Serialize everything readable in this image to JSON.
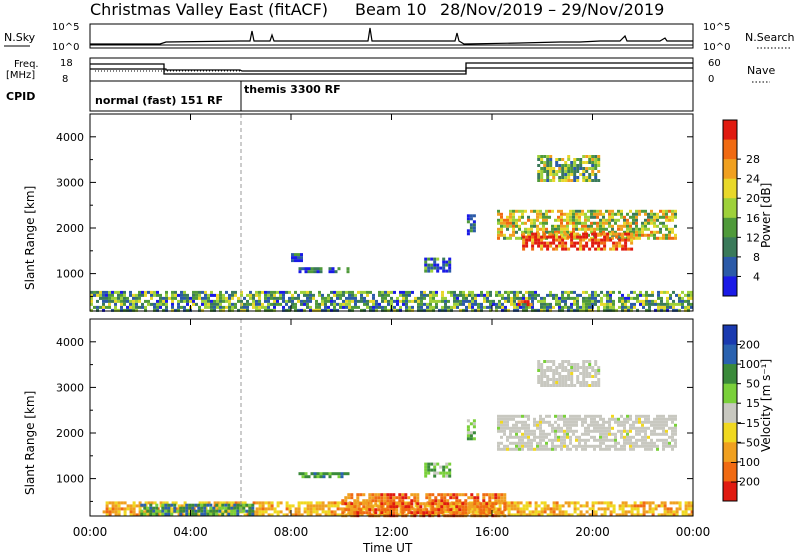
{
  "header": {
    "station": "Christmas Valley East (fitACF)",
    "beam": "Beam 10",
    "dates": "28/Nov/2019 – 29/Nov/2019"
  },
  "top_panels": {
    "nsky_label": "N.Sky",
    "nsky_ticks": [
      "10^5",
      "10^0"
    ],
    "nsearch_label": "N.Search",
    "nsearch_ticks": [
      "10^5",
      "10^0"
    ],
    "freq_label_line1": "Freq.",
    "freq_label_line2": "[MHz]",
    "freq_ticks": [
      "18",
      "8"
    ],
    "nave_label": "Nave",
    "nave_ticks": [
      "60",
      "0"
    ],
    "cpid_label": "CPID",
    "cpid_segments": [
      {
        "label": "normal (fast) 151 RF",
        "start_hour": 0
      },
      {
        "label": "themis 3300 RF",
        "start_hour": 6
      }
    ]
  },
  "chart_data": [
    {
      "type": "heatmap",
      "name": "power",
      "ylabel": "Slant Range [km]",
      "yticks": [
        1000,
        2000,
        3000,
        4000
      ],
      "ylim": [
        180,
        4500
      ],
      "xlim_hours": [
        0,
        24
      ],
      "colorbar_label": "Power [dB]",
      "colorbar_ticks": [
        "4",
        "8",
        "12",
        "16",
        "20",
        "24",
        "28"
      ],
      "colorbar_colors": [
        "#1a1ae6",
        "#2b5aa8",
        "#3a7a5a",
        "#4f9a3a",
        "#9ed13a",
        "#e8d82a",
        "#f0a020",
        "#f06a12",
        "#e01a10"
      ],
      "echo_regions": [
        {
          "t0": 0.0,
          "t1": 24.0,
          "r0": 180,
          "r1": 620,
          "level": 0.35
        },
        {
          "t0": 16.2,
          "t1": 23.3,
          "r0": 1750,
          "r1": 2400,
          "level": 0.55
        },
        {
          "t0": 17.2,
          "t1": 21.5,
          "r0": 1550,
          "r1": 1900,
          "level": 0.9
        },
        {
          "t0": 17.8,
          "t1": 20.2,
          "r0": 3050,
          "r1": 3600,
          "level": 0.45
        },
        {
          "t0": 8.3,
          "t1": 10.3,
          "r0": 1020,
          "r1": 1140,
          "level": 0.2
        },
        {
          "t0": 13.3,
          "t1": 14.3,
          "r0": 1050,
          "r1": 1350,
          "level": 0.2
        },
        {
          "t0": 8.0,
          "t1": 8.4,
          "r0": 1300,
          "r1": 1450,
          "level": 0.15
        },
        {
          "t0": 15.0,
          "t1": 15.3,
          "r0": 1900,
          "r1": 2300,
          "level": 0.2
        },
        {
          "t0": 16.9,
          "t1": 17.6,
          "r0": 300,
          "r1": 420,
          "level": 1.0
        }
      ]
    },
    {
      "type": "heatmap",
      "name": "velocity",
      "ylabel": "Slant Range [km]",
      "yticks": [
        1000,
        2000,
        3000,
        4000
      ],
      "ylim": [
        180,
        4500
      ],
      "xlim_hours": [
        0,
        24
      ],
      "xticks": [
        "00:00",
        "04:00",
        "08:00",
        "12:00",
        "16:00",
        "20:00",
        "00:00"
      ],
      "xlabel": "Time UT",
      "colorbar_label": "Velocity [m s⁻¹]",
      "colorbar_ticks": [
        "200",
        "100",
        "50",
        "15",
        "−15",
        "−50",
        "−100",
        "−200"
      ],
      "colorbar_colors": [
        "#1a3ab0",
        "#2a62b0",
        "#3a8a3a",
        "#7ad03a",
        "#c8c8c0",
        "#f0d820",
        "#f0a020",
        "#f06a12",
        "#e01a10"
      ],
      "echo_regions": [
        {
          "t0": 0.5,
          "t1": 24.0,
          "r0": 180,
          "r1": 500,
          "level": -0.4
        },
        {
          "t0": 2.0,
          "t1": 6.5,
          "r0": 200,
          "r1": 450,
          "level": 0.5
        },
        {
          "t0": 10.0,
          "t1": 16.5,
          "r0": 200,
          "r1": 680,
          "level": -0.7
        },
        {
          "t0": 16.2,
          "t1": 23.3,
          "r0": 1650,
          "r1": 2400,
          "level": 0.0
        },
        {
          "t0": 17.8,
          "t1": 20.2,
          "r0": 3050,
          "r1": 3600,
          "level": 0.0
        },
        {
          "t0": 8.3,
          "t1": 10.3,
          "r0": 1020,
          "r1": 1140,
          "level": 0.4
        },
        {
          "t0": 13.3,
          "t1": 14.3,
          "r0": 1050,
          "r1": 1350,
          "level": 0.35
        },
        {
          "t0": 15.0,
          "t1": 15.3,
          "r0": 1900,
          "r1": 2300,
          "level": 0.3
        }
      ]
    }
  ]
}
